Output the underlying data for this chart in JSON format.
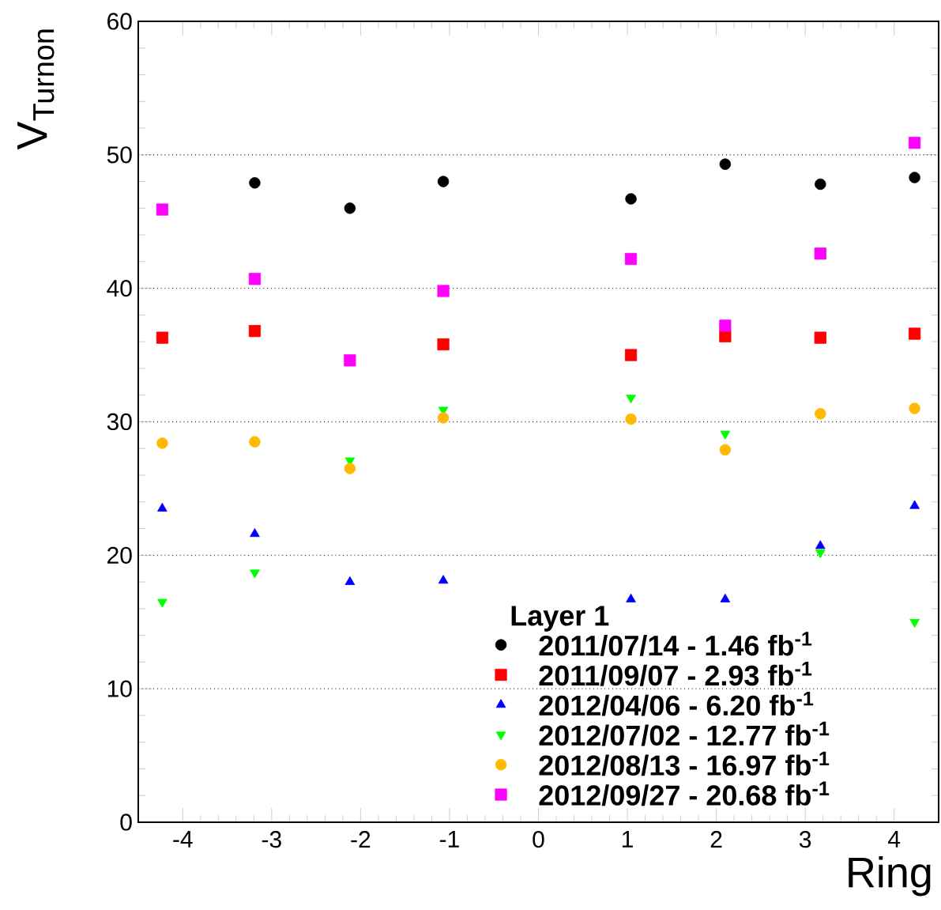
{
  "chart_data": {
    "type": "scatter",
    "xlabel": "Ring",
    "ylabel": "V$_{Turnon}$",
    "legend_title": "Layer 1",
    "x": [
      -4.23,
      -3.19,
      -2.12,
      -1.07,
      1.04,
      2.1,
      3.17,
      4.23
    ],
    "series": [
      {
        "name": "2011/07/14 - 1.46 fb$^{-1}$",
        "color": "#000000",
        "marker": "circle",
        "values": [
          null,
          47.9,
          46.0,
          48.0,
          46.7,
          49.3,
          47.8,
          48.3
        ]
      },
      {
        "name": "2011/09/07 - 2.93 fb$^{-1}$",
        "color": "#ff0000",
        "marker": "square",
        "values": [
          36.3,
          36.8,
          null,
          35.8,
          35.0,
          36.4,
          36.3,
          36.6
        ]
      },
      {
        "name": "2012/04/06 - 6.20 fb$^{-1}$",
        "color": "#0000ff",
        "marker": "triangle",
        "values": [
          23.5,
          21.6,
          18.0,
          18.1,
          16.7,
          16.7,
          20.7,
          23.7
        ]
      },
      {
        "name": "2012/07/02 - 12.77 fb$^{-1}$",
        "color": "#00ff00",
        "marker": "triangle down",
        "values": [
          16.5,
          18.7,
          27.1,
          30.9,
          31.8,
          29.1,
          20.2,
          15.0
        ]
      },
      {
        "name": "2012/08/13 - 16.97 fb$^{-1}$",
        "color": "#ffb900",
        "marker": "circle",
        "values": [
          28.4,
          28.5,
          26.5,
          30.3,
          30.2,
          27.9,
          30.6,
          31.0
        ]
      },
      {
        "name": "2012/09/27 - 20.68 fb$^{-1}$",
        "color": "#ff00ff",
        "marker": "square",
        "values": [
          45.9,
          40.7,
          34.6,
          39.8,
          42.2,
          37.2,
          42.6,
          50.9
        ]
      }
    ],
    "xlim": [
      -4.5,
      4.5
    ],
    "ylim": [
      0,
      60
    ],
    "xticks": [
      -4,
      -3,
      -2,
      -1,
      0,
      1,
      2,
      3,
      4
    ],
    "yticks": [
      0,
      10,
      20,
      30,
      40,
      50,
      60
    ],
    "grid": "y",
    "legend": "bottom right"
  }
}
